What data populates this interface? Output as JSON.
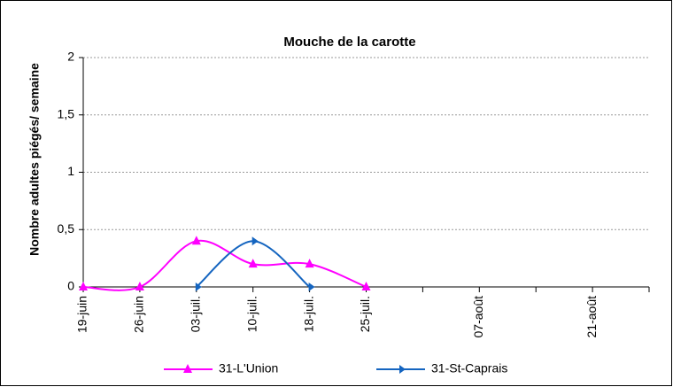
{
  "chart_data": {
    "type": "line",
    "title": "Mouche de la carotte",
    "y_label": "Nombre adultes piégés/ semaine",
    "categories": [
      "19-juin",
      "26-juin",
      "03-juil.",
      "10-juil.",
      "18-juil.",
      "25-juil.",
      null,
      "07-août",
      null,
      "21-août",
      null
    ],
    "series": [
      {
        "name": "31-L'Union",
        "color": "#ff00ff",
        "marker": "triangle",
        "values": [
          0,
          0,
          0.4,
          0.2,
          0.2,
          0,
          null,
          null,
          null,
          null,
          null
        ]
      },
      {
        "name": "31-St-Caprais",
        "color": "#1565c0",
        "marker": "arrow",
        "values": [
          null,
          null,
          0,
          0.4,
          0,
          null,
          null,
          null,
          null,
          null,
          null
        ]
      }
    ],
    "ylim": [
      0,
      2
    ],
    "yticks": [
      0,
      {
        "value": 0.5,
        "label": "0,5"
      },
      1,
      {
        "value": 1.5,
        "label": "1,5"
      },
      2
    ],
    "grid": true,
    "smooth": true,
    "legend": "bottom"
  }
}
